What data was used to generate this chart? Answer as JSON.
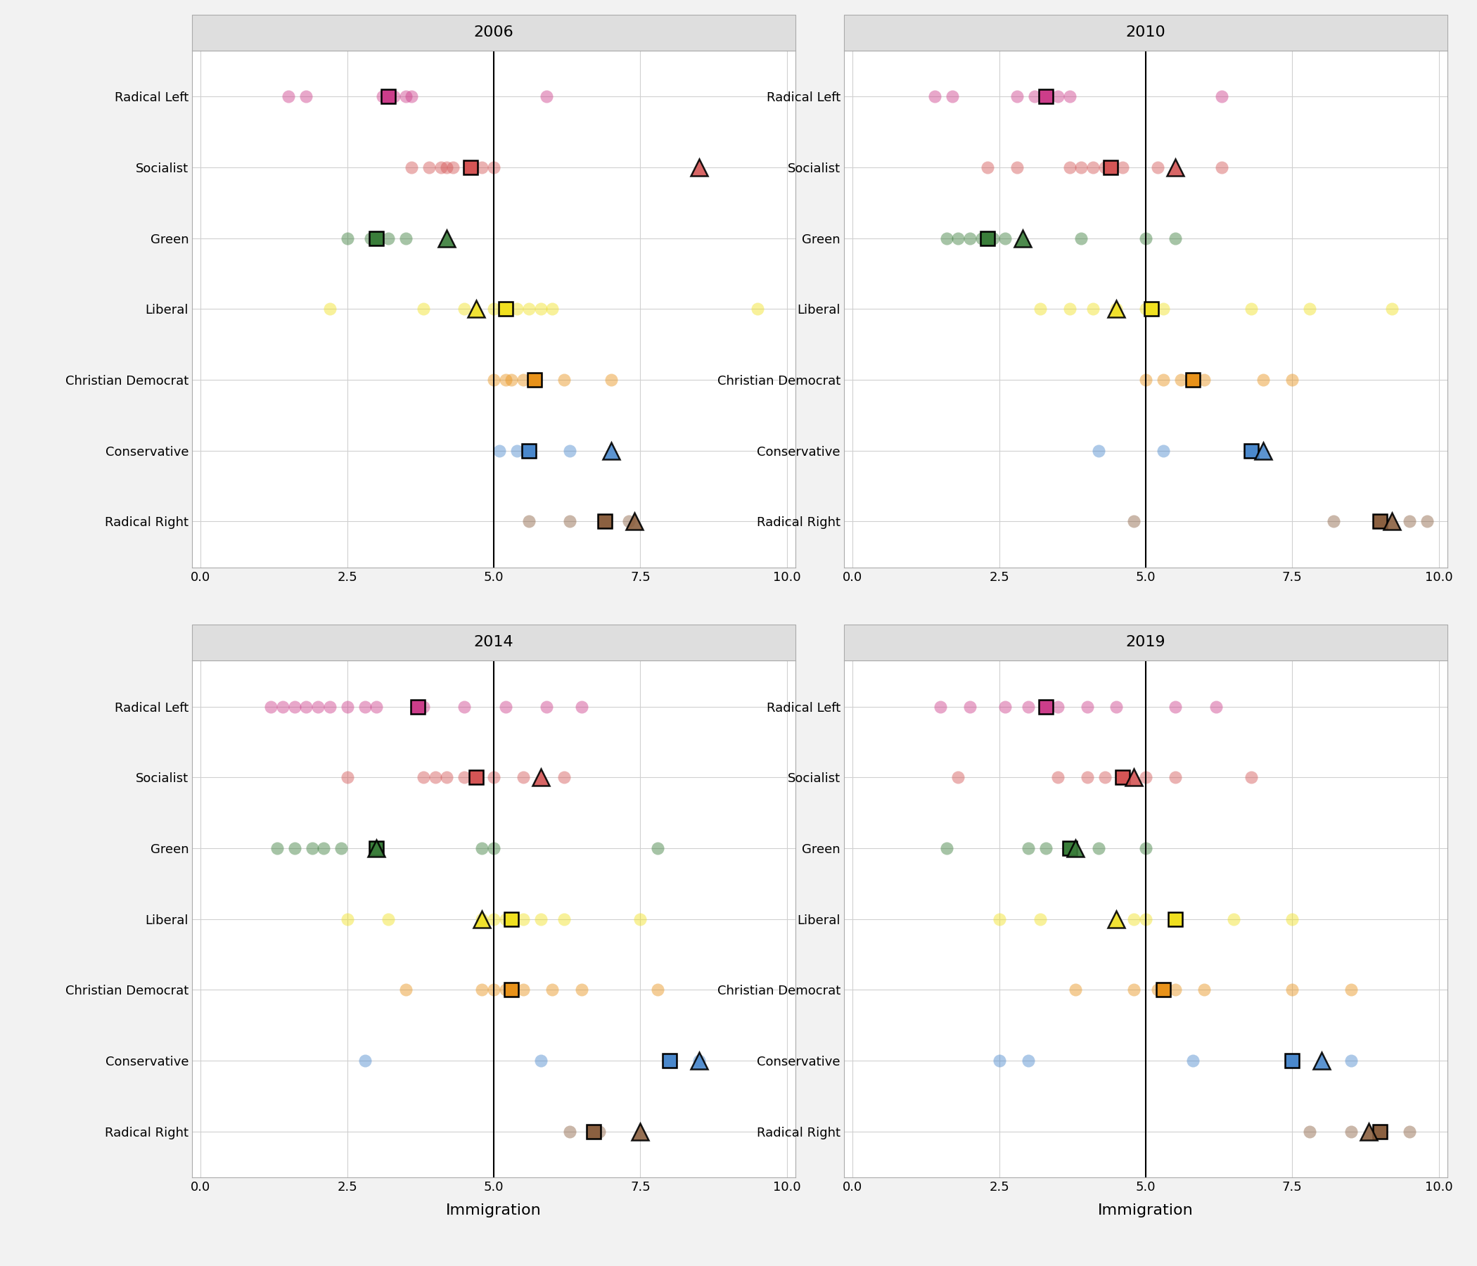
{
  "years": [
    "2006",
    "2010",
    "2014",
    "2019"
  ],
  "parties": [
    "Radical Left",
    "Socialist",
    "Green",
    "Liberal",
    "Christian Democrat",
    "Conservative",
    "Radical Right"
  ],
  "party_colors": {
    "Radical Left": "#cc3d8a",
    "Socialist": "#d45555",
    "Green": "#3a7d3a",
    "Liberal": "#f0e020",
    "Christian Democrat": "#e8921a",
    "Conservative": "#4a88cc",
    "Radical Right": "#8b6040"
  },
  "vline_x": 5.0,
  "xticks": [
    0.0,
    2.5,
    5.0,
    7.5,
    10.0
  ],
  "xlabel": "Immigration",
  "strip_bg": "#dedede",
  "panel_bg": "#f2f2f2",
  "plot_bg": "#ffffff",
  "grid_color": "#d0d0d0",
  "data": {
    "2006": {
      "Radical Left": {
        "circles": [
          1.5,
          1.8,
          3.1,
          3.2,
          3.3,
          3.5,
          3.6,
          5.9
        ],
        "square": 3.2,
        "triangle": null
      },
      "Socialist": {
        "circles": [
          3.6,
          3.9,
          4.1,
          4.2,
          4.3,
          4.6,
          4.8,
          5.0
        ],
        "square": 4.6,
        "triangle": 8.5
      },
      "Green": {
        "circles": [
          2.5,
          2.9,
          3.2,
          3.5
        ],
        "square": 3.0,
        "triangle": 4.2
      },
      "Liberal": {
        "circles": [
          2.2,
          3.8,
          4.5,
          5.0,
          5.2,
          5.4,
          5.6,
          5.8,
          6.0,
          9.5
        ],
        "square": 5.2,
        "triangle": 4.7
      },
      "Christian Democrat": {
        "circles": [
          5.0,
          5.2,
          5.3,
          5.5,
          6.2,
          7.0
        ],
        "square": 5.7,
        "triangle": null
      },
      "Conservative": {
        "circles": [
          5.1,
          5.4,
          6.3
        ],
        "square": 5.6,
        "triangle": 7.0
      },
      "Radical Right": {
        "circles": [
          5.6,
          6.3,
          7.3
        ],
        "square": 6.9,
        "triangle": 7.4
      }
    },
    "2010": {
      "Radical Left": {
        "circles": [
          1.4,
          1.7,
          2.8,
          3.1,
          3.3,
          3.5,
          3.7,
          6.3
        ],
        "square": 3.3,
        "triangle": null
      },
      "Socialist": {
        "circles": [
          2.3,
          2.8,
          3.7,
          3.9,
          4.1,
          4.3,
          4.6,
          5.2,
          6.3
        ],
        "square": 4.4,
        "triangle": 5.5
      },
      "Green": {
        "circles": [
          1.6,
          1.8,
          2.0,
          2.2,
          2.4,
          2.6,
          3.9,
          5.0,
          5.5
        ],
        "square": 2.3,
        "triangle": 2.9
      },
      "Liberal": {
        "circles": [
          3.2,
          3.7,
          4.1,
          4.5,
          5.0,
          5.1,
          5.3,
          6.8,
          7.8,
          9.2
        ],
        "square": 5.1,
        "triangle": 4.5
      },
      "Christian Democrat": {
        "circles": [
          5.0,
          5.3,
          5.6,
          6.0,
          7.0,
          7.5
        ],
        "square": 5.8,
        "triangle": null
      },
      "Conservative": {
        "circles": [
          4.2,
          5.3
        ],
        "square": 6.8,
        "triangle": 7.0
      },
      "Radical Right": {
        "circles": [
          4.8,
          8.2,
          9.0,
          9.5,
          9.8
        ],
        "square": 9.0,
        "triangle": 9.2
      }
    },
    "2014": {
      "Radical Left": {
        "circles": [
          1.2,
          1.4,
          1.6,
          1.8,
          2.0,
          2.2,
          2.5,
          2.8,
          3.0,
          3.8,
          4.5,
          5.2,
          5.9,
          6.5
        ],
        "square": 3.7,
        "triangle": null
      },
      "Socialist": {
        "circles": [
          2.5,
          3.8,
          4.0,
          4.2,
          4.5,
          4.7,
          5.0,
          5.5,
          6.2
        ],
        "square": 4.7,
        "triangle": 5.8
      },
      "Green": {
        "circles": [
          1.3,
          1.6,
          1.9,
          2.1,
          2.4,
          4.8,
          5.0,
          7.8
        ],
        "square": 3.0,
        "triangle": 3.0
      },
      "Liberal": {
        "circles": [
          2.5,
          3.2,
          4.8,
          5.0,
          5.2,
          5.5,
          5.8,
          6.2,
          7.5
        ],
        "square": 5.3,
        "triangle": 4.8
      },
      "Christian Democrat": {
        "circles": [
          3.5,
          4.8,
          5.0,
          5.2,
          5.5,
          6.0,
          6.5,
          7.8
        ],
        "square": 5.3,
        "triangle": null
      },
      "Conservative": {
        "circles": [
          2.8,
          5.8,
          8.0,
          8.5
        ],
        "square": 8.0,
        "triangle": 8.5
      },
      "Radical Right": {
        "circles": [
          6.3,
          6.8
        ],
        "square": 6.7,
        "triangle": 7.5
      }
    },
    "2019": {
      "Radical Left": {
        "circles": [
          1.5,
          2.0,
          2.6,
          3.0,
          3.5,
          4.0,
          4.5,
          5.5,
          6.2
        ],
        "square": 3.3,
        "triangle": null
      },
      "Socialist": {
        "circles": [
          1.8,
          3.5,
          4.0,
          4.3,
          4.6,
          5.0,
          5.5,
          6.8
        ],
        "square": 4.6,
        "triangle": 4.8
      },
      "Green": {
        "circles": [
          1.6,
          3.0,
          3.3,
          3.7,
          4.2,
          5.0
        ],
        "square": 3.7,
        "triangle": 3.8
      },
      "Liberal": {
        "circles": [
          2.5,
          3.2,
          4.8,
          5.0,
          5.5,
          6.5,
          7.5
        ],
        "square": 5.5,
        "triangle": 4.5
      },
      "Christian Democrat": {
        "circles": [
          3.8,
          4.8,
          5.2,
          5.5,
          6.0,
          7.5,
          8.5
        ],
        "square": 5.3,
        "triangle": null
      },
      "Conservative": {
        "circles": [
          2.5,
          3.0,
          5.8,
          7.5,
          8.5
        ],
        "square": 7.5,
        "triangle": 8.0
      },
      "Radical Right": {
        "circles": [
          7.8,
          8.5,
          9.0,
          9.5
        ],
        "square": 9.0,
        "triangle": 8.8
      }
    }
  }
}
